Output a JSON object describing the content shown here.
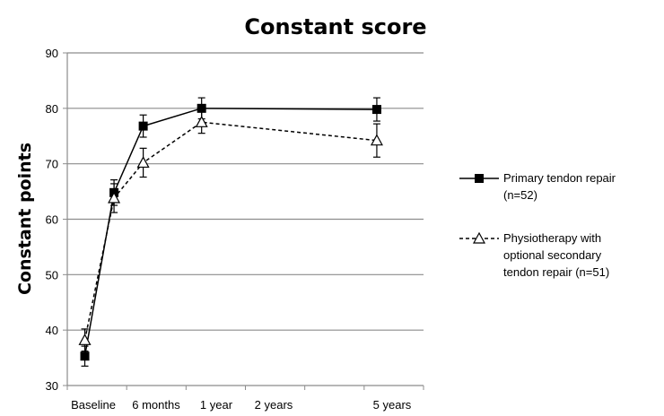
{
  "chart_data": {
    "type": "line",
    "title": "Constant score",
    "ylabel": "Constant points",
    "xlabel": "",
    "ylim": [
      30,
      90
    ],
    "yticks": [
      30,
      40,
      50,
      60,
      70,
      80,
      90
    ],
    "grid": true,
    "legend_position": "right",
    "categories": [
      "Baseline",
      "6 months",
      "1 year",
      "2 years",
      "5 years"
    ],
    "x_years": [
      0,
      0.5,
      1,
      2,
      5
    ],
    "series": [
      {
        "name": "Primary tendon repair (n=52)",
        "name_lines": [
          "Primary tendon repair",
          "(n=52)"
        ],
        "marker": "filled-square",
        "line_style": "solid",
        "values": [
          35.3,
          64.8,
          76.8,
          80.0,
          79.8
        ],
        "error": [
          1.8,
          2.3,
          2.0,
          1.9,
          2.1
        ]
      },
      {
        "name": "Physiotherapy with optional secondary tendon repair (n=51)",
        "name_lines": [
          "Physiotherapy with",
          "optional secondary",
          "tendon repair (n=51)"
        ],
        "marker": "open-triangle",
        "line_style": "dashed",
        "values": [
          38.2,
          63.8,
          70.2,
          77.5,
          74.2
        ],
        "error": [
          2.0,
          2.6,
          2.6,
          2.0,
          3.0
        ]
      }
    ]
  }
}
